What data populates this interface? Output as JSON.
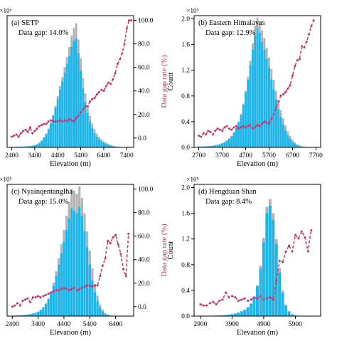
{
  "colors": {
    "bar_total": "#b3b3b3",
    "bar_valid": "#18b6ec",
    "gap_line": "#c8336a",
    "axis": "#000000"
  },
  "chart_data": [
    {
      "type": "bar",
      "panel_label": "(a) SETP",
      "gap_text": "Data gap: 14.0%",
      "xlabel": "Elevation (m)",
      "ylabel": "",
      "y2label": "Data gap rate (%)",
      "y_multiplier": "×10⁶",
      "xlim": [
        2200,
        7700
      ],
      "ylim": [
        0,
        2.1
      ],
      "y2lim": [
        -8,
        104
      ],
      "x_ticks": [
        2400,
        3400,
        4400,
        5400,
        6400,
        7400
      ],
      "y_ticks": [],
      "y2_ticks": [
        0.0,
        20.0,
        40.0,
        60.0,
        80.0,
        100.0
      ],
      "show_left_axis": false,
      "bin_width": 100,
      "x": [
        2400,
        2500,
        2600,
        2700,
        2800,
        2900,
        3000,
        3100,
        3200,
        3300,
        3400,
        3500,
        3600,
        3700,
        3800,
        3900,
        4000,
        4100,
        4200,
        4300,
        4400,
        4500,
        4600,
        4700,
        4800,
        4900,
        5000,
        5100,
        5200,
        5300,
        5400,
        5500,
        5600,
        5700,
        5800,
        5900,
        6000,
        6100,
        6200,
        6300,
        6400,
        6500,
        6600,
        6700,
        6800,
        6900,
        7000,
        7100,
        7200,
        7300,
        7400,
        7500,
        7600
      ],
      "series": [
        {
          "name": "total",
          "values": [
            0.005,
            0.007,
            0.008,
            0.009,
            0.01,
            0.012,
            0.015,
            0.018,
            0.022,
            0.028,
            0.036,
            0.05,
            0.075,
            0.11,
            0.16,
            0.22,
            0.3,
            0.4,
            0.52,
            0.66,
            0.82,
            0.98,
            1.12,
            1.28,
            1.44,
            1.6,
            1.78,
            1.9,
            1.98,
            1.72,
            1.42,
            1.1,
            0.86,
            0.66,
            0.5,
            0.38,
            0.29,
            0.22,
            0.17,
            0.13,
            0.1,
            0.075,
            0.055,
            0.04,
            0.028,
            0.02,
            0.014,
            0.01,
            0.006,
            0.004,
            0.003,
            0.002,
            0.001
          ]
        },
        {
          "name": "valid",
          "values": [
            0.005,
            0.007,
            0.008,
            0.009,
            0.01,
            0.012,
            0.015,
            0.018,
            0.021,
            0.027,
            0.035,
            0.048,
            0.072,
            0.106,
            0.155,
            0.212,
            0.29,
            0.385,
            0.5,
            0.63,
            0.78,
            0.92,
            1.05,
            1.19,
            1.33,
            1.46,
            1.6,
            1.7,
            1.74,
            1.5,
            1.22,
            0.94,
            0.72,
            0.55,
            0.41,
            0.31,
            0.23,
            0.17,
            0.13,
            0.1,
            0.075,
            0.055,
            0.04,
            0.028,
            0.018,
            0.012,
            0.008,
            0.005,
            0.003,
            0.002,
            0.001,
            0.001,
            0.0
          ]
        },
        {
          "name": "gap",
          "values": [
            1,
            2,
            3,
            1,
            4,
            6,
            7,
            5,
            9,
            4,
            6,
            8,
            10,
            11,
            12,
            12,
            14,
            15,
            14,
            14,
            14,
            15,
            14,
            15,
            14,
            16,
            15,
            14,
            17,
            19,
            22,
            24,
            27,
            27,
            31,
            33,
            34,
            37,
            39,
            41,
            40,
            44,
            47,
            46,
            50,
            55,
            63,
            67,
            72,
            80,
            93,
            100,
            100
          ]
        }
      ]
    },
    {
      "type": "bar",
      "panel_label": "(b) Eastern Himalayas",
      "gap_text": "Data gap: 12.9%",
      "xlabel": "Elevation (m)",
      "ylabel": "Count",
      "y2label": "",
      "y_multiplier": "×10⁵",
      "xlim": [
        2500,
        7900
      ],
      "ylim": [
        0,
        2.05
      ],
      "y2lim": [
        -8,
        104
      ],
      "x_ticks": [
        2700,
        3700,
        4700,
        5700,
        6700,
        7700
      ],
      "y_ticks": [
        0.0,
        0.4,
        0.8,
        1.2,
        1.6,
        2.0
      ],
      "y2_ticks": [],
      "show_left_axis": true,
      "bin_width": 100,
      "x": [
        2700,
        2800,
        2900,
        3000,
        3100,
        3200,
        3300,
        3400,
        3500,
        3600,
        3700,
        3800,
        3900,
        4000,
        4100,
        4200,
        4300,
        4400,
        4500,
        4600,
        4700,
        4800,
        4900,
        5000,
        5100,
        5200,
        5300,
        5400,
        5500,
        5600,
        5700,
        5800,
        5900,
        6000,
        6100,
        6200,
        6300,
        6400,
        6500,
        6600,
        6700,
        6800,
        6900,
        7000,
        7100,
        7200,
        7300,
        7400,
        7500,
        7600
      ],
      "series": [
        {
          "name": "total",
          "values": [
            0.01,
            0.012,
            0.014,
            0.016,
            0.018,
            0.022,
            0.026,
            0.032,
            0.04,
            0.05,
            0.065,
            0.085,
            0.11,
            0.14,
            0.18,
            0.24,
            0.31,
            0.4,
            0.52,
            0.68,
            0.88,
            1.1,
            1.35,
            1.62,
            1.88,
            2.02,
            1.96,
            1.82,
            1.7,
            1.55,
            1.4,
            1.22,
            1.05,
            0.88,
            0.72,
            0.58,
            0.45,
            0.34,
            0.25,
            0.18,
            0.12,
            0.08,
            0.05,
            0.032,
            0.02,
            0.012,
            0.007,
            0.004,
            0.002,
            0.001
          ]
        },
        {
          "name": "valid",
          "values": [
            0.01,
            0.012,
            0.014,
            0.016,
            0.018,
            0.022,
            0.026,
            0.031,
            0.039,
            0.048,
            0.063,
            0.082,
            0.106,
            0.135,
            0.174,
            0.23,
            0.3,
            0.39,
            0.5,
            0.66,
            0.85,
            1.05,
            1.28,
            1.52,
            1.74,
            1.86,
            1.78,
            1.64,
            1.52,
            1.38,
            1.24,
            1.06,
            0.9,
            0.75,
            0.6,
            0.47,
            0.36,
            0.27,
            0.19,
            0.13,
            0.085,
            0.055,
            0.033,
            0.02,
            0.012,
            0.007,
            0.004,
            0.002,
            0.001,
            0.0
          ]
        },
        {
          "name": "gap",
          "values": [
            2,
            1,
            4,
            3,
            6,
            5,
            3,
            6,
            8,
            7,
            6,
            9,
            10,
            8,
            7,
            9,
            10,
            8,
            9,
            10,
            9,
            10,
            11,
            8,
            9,
            11,
            10,
            12,
            14,
            13,
            12,
            16,
            20,
            26,
            31,
            36,
            37,
            39,
            42,
            45,
            53,
            61,
            66,
            67,
            78,
            77,
            82,
            88,
            95,
            100
          ]
        }
      ]
    },
    {
      "type": "bar",
      "panel_label": "(c) Nyainqentanglha",
      "gap_text": "Data gap: 15.0%",
      "xlabel": "Elevation (m)",
      "ylabel": "",
      "y2label": "Data gap rate (%)",
      "y_multiplier": "×10⁵",
      "xlim": [
        2200,
        7100
      ],
      "ylim": [
        0,
        2.05
      ],
      "y2lim": [
        -8,
        104
      ],
      "x_ticks": [
        2400,
        3400,
        4400,
        5400,
        6400
      ],
      "y_ticks": [],
      "y2_ticks": [
        0.0,
        20.0,
        40.0,
        60.0,
        80.0,
        100.0
      ],
      "show_left_axis": false,
      "bin_width": 100,
      "x": [
        2400,
        2500,
        2600,
        2700,
        2800,
        2900,
        3000,
        3100,
        3200,
        3300,
        3400,
        3500,
        3600,
        3700,
        3800,
        3900,
        4000,
        4100,
        4200,
        4300,
        4400,
        4500,
        4600,
        4700,
        4800,
        4900,
        5000,
        5100,
        5200,
        5300,
        5400,
        5500,
        5600,
        5700,
        5800,
        5900,
        6000,
        6100,
        6200,
        6300,
        6400,
        6500,
        6600,
        6700,
        6800,
        6900
      ],
      "series": [
        {
          "name": "total",
          "values": [
            0.005,
            0.007,
            0.009,
            0.011,
            0.014,
            0.018,
            0.023,
            0.03,
            0.04,
            0.052,
            0.07,
            0.1,
            0.14,
            0.2,
            0.28,
            0.38,
            0.52,
            0.7,
            0.9,
            1.12,
            1.34,
            1.56,
            1.78,
            1.98,
            1.95,
            1.9,
            2.02,
            1.84,
            1.6,
            1.32,
            1.02,
            0.74,
            0.5,
            0.32,
            0.18,
            0.1,
            0.05,
            0.025,
            0.012,
            0.006,
            0.003,
            0.002,
            0.001,
            0.001,
            0.0,
            0.0
          ]
        },
        {
          "name": "valid",
          "values": [
            0.005,
            0.007,
            0.009,
            0.011,
            0.014,
            0.018,
            0.022,
            0.029,
            0.038,
            0.05,
            0.067,
            0.095,
            0.13,
            0.185,
            0.26,
            0.35,
            0.47,
            0.62,
            0.8,
            0.98,
            1.16,
            1.34,
            1.52,
            1.68,
            1.64,
            1.6,
            1.7,
            1.56,
            1.32,
            1.07,
            0.8,
            0.56,
            0.37,
            0.23,
            0.13,
            0.07,
            0.035,
            0.017,
            0.008,
            0.004,
            0.002,
            0.001,
            0.0,
            0.0,
            0.0,
            0.0
          ]
        },
        {
          "name": "gap",
          "values": [
            0,
            1,
            3,
            1,
            5,
            6,
            7,
            4,
            8,
            8,
            9,
            8,
            9,
            10,
            11,
            12,
            13,
            14,
            14,
            15,
            16,
            15,
            14,
            15,
            16,
            14,
            15,
            16,
            17,
            18,
            18,
            17,
            18,
            18,
            26,
            35,
            41,
            56,
            54,
            59,
            61,
            53,
            45,
            32,
            26,
            62
          ]
        }
      ]
    },
    {
      "type": "bar",
      "panel_label": "(d) Hengduan Shan",
      "gap_text": "Data gap: 8.4%",
      "xlabel": "Elevation (m)",
      "ylabel": "Count",
      "y2label": "",
      "y_multiplier": "×10⁵",
      "xlim": [
        2700,
        6700
      ],
      "ylim": [
        0,
        2.05
      ],
      "y2lim": [
        -8,
        104
      ],
      "x_ticks": [
        2900,
        3900,
        4900,
        5900
      ],
      "y_ticks": [
        0.0,
        0.4,
        0.8,
        1.2,
        1.6,
        2.0
      ],
      "y2_ticks": [],
      "show_left_axis": true,
      "bin_width": 100,
      "x": [
        2900,
        3000,
        3100,
        3200,
        3300,
        3400,
        3500,
        3600,
        3700,
        3800,
        3900,
        4000,
        4100,
        4200,
        4300,
        4400,
        4500,
        4600,
        4700,
        4800,
        4900,
        5000,
        5100,
        5200,
        5300,
        5400,
        5500,
        5600,
        5700,
        5800,
        5900,
        6000,
        6100,
        6200,
        6300,
        6400
      ],
      "series": [
        {
          "name": "total",
          "values": [
            0.002,
            0.003,
            0.004,
            0.005,
            0.006,
            0.008,
            0.01,
            0.013,
            0.017,
            0.022,
            0.03,
            0.04,
            0.055,
            0.075,
            0.1,
            0.14,
            0.2,
            0.3,
            0.48,
            0.78,
            1.22,
            1.7,
            1.82,
            1.6,
            1.2,
            0.75,
            0.4,
            0.18,
            0.08,
            0.03,
            0.012,
            0.005,
            0.002,
            0.001,
            0.0,
            0.0
          ]
        },
        {
          "name": "valid",
          "values": [
            0.002,
            0.003,
            0.004,
            0.005,
            0.006,
            0.008,
            0.01,
            0.013,
            0.017,
            0.022,
            0.029,
            0.039,
            0.053,
            0.072,
            0.097,
            0.135,
            0.19,
            0.29,
            0.46,
            0.74,
            1.15,
            1.6,
            1.72,
            1.5,
            1.12,
            0.68,
            0.36,
            0.16,
            0.07,
            0.025,
            0.01,
            0.004,
            0.002,
            0.0,
            0.0,
            0.0
          ]
        },
        {
          "name": "gap",
          "values": [
            2,
            1,
            1,
            3,
            4,
            2,
            5,
            6,
            12,
            8,
            9,
            8,
            5,
            6,
            7,
            5,
            6,
            8,
            7,
            9,
            6,
            7,
            8,
            6,
            22,
            39,
            38,
            47,
            52,
            47,
            61,
            58,
            64,
            59,
            47,
            65
          ]
        }
      ]
    }
  ]
}
